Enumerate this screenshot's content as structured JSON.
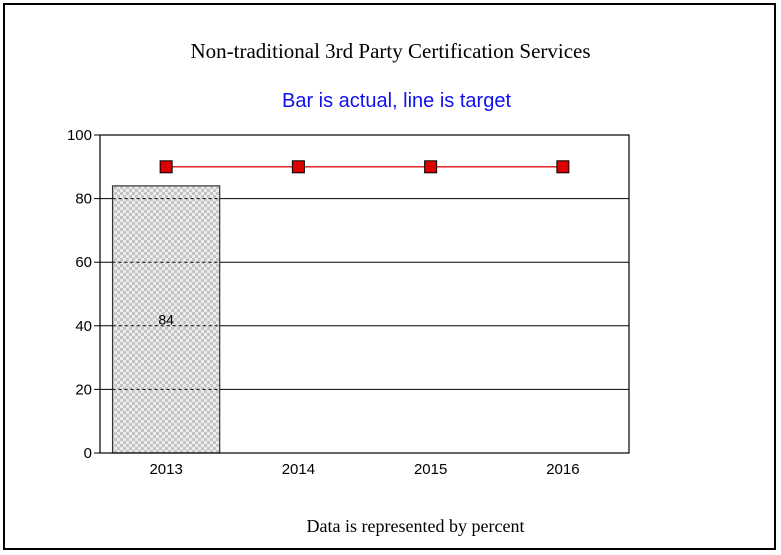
{
  "chart_data": {
    "type": "bar",
    "title": "Non-traditional 3rd Party Certification Services",
    "subtitle": "Bar is actual, line is target",
    "footnote": "Data is represented by percent",
    "categories": [
      "2013",
      "2014",
      "2015",
      "2016"
    ],
    "series": [
      {
        "type": "bar",
        "values": [
          84,
          null,
          null,
          null
        ],
        "data_labels": [
          "84",
          null,
          null,
          null
        ]
      },
      {
        "type": "line",
        "values": [
          90,
          90,
          90,
          90
        ]
      }
    ],
    "ylim": [
      0,
      100
    ],
    "yticks": [
      0,
      20,
      40,
      60,
      80,
      100
    ],
    "grid": true,
    "colors": {
      "bar_fill": "#d6d6d6",
      "bar_stroke": "#333333",
      "target_line": "#e01010",
      "target_marker": "#dd0000",
      "subtitle_text": "#1010ee"
    }
  }
}
